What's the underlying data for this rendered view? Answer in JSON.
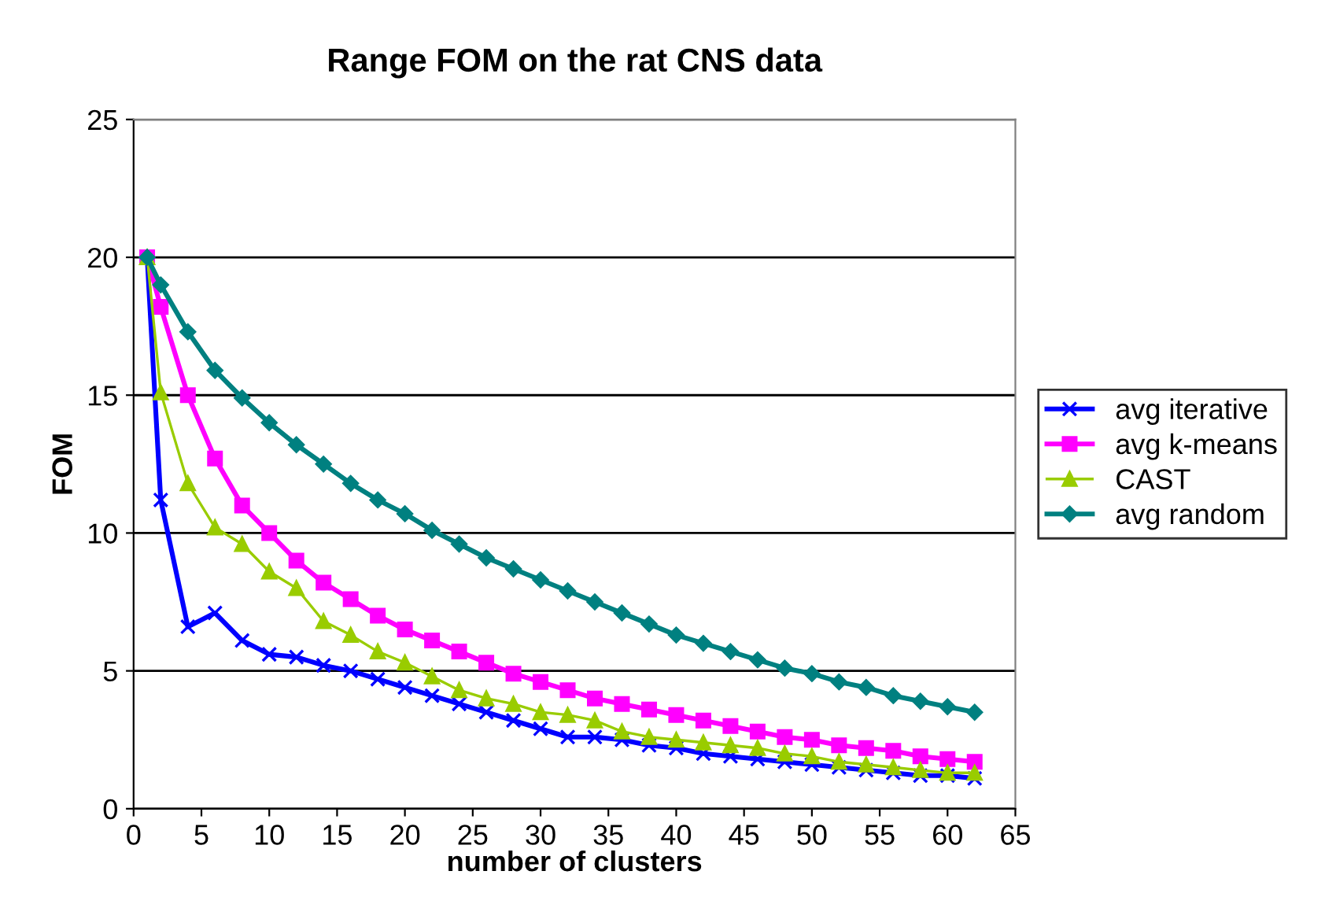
{
  "chart_data": {
    "type": "line",
    "title": "Range FOM on the rat CNS data",
    "xlabel": "number of clusters",
    "ylabel": "FOM",
    "x": [
      1,
      2,
      4,
      6,
      8,
      10,
      12,
      14,
      16,
      18,
      20,
      22,
      24,
      26,
      28,
      30,
      32,
      34,
      36,
      38,
      40,
      42,
      44,
      46,
      48,
      50,
      52,
      54,
      56,
      58,
      60,
      62
    ],
    "series": [
      {
        "name": "avg iterative",
        "color": "#0000ff",
        "marker": "cross",
        "values": [
          20,
          11.2,
          6.6,
          7.1,
          6.1,
          5.6,
          5.5,
          5.2,
          5.0,
          4.7,
          4.4,
          4.1,
          3.8,
          3.5,
          3.2,
          2.9,
          2.6,
          2.6,
          2.5,
          2.3,
          2.2,
          2.0,
          1.9,
          1.8,
          1.7,
          1.6,
          1.5,
          1.4,
          1.3,
          1.2,
          1.2,
          1.1
        ]
      },
      {
        "name": "avg k-means",
        "color": "#ff00ff",
        "marker": "square",
        "values": [
          20,
          18.2,
          15.0,
          12.7,
          11.0,
          10.0,
          9.0,
          8.2,
          7.6,
          7.0,
          6.5,
          6.1,
          5.7,
          5.3,
          4.9,
          4.6,
          4.3,
          4.0,
          3.8,
          3.6,
          3.4,
          3.2,
          3.0,
          2.8,
          2.6,
          2.5,
          2.3,
          2.2,
          2.1,
          1.9,
          1.8,
          1.7
        ]
      },
      {
        "name": "CAST",
        "color": "#99cc00",
        "marker": "triangle",
        "values": [
          20,
          15.1,
          11.8,
          10.2,
          9.6,
          8.6,
          8.0,
          6.8,
          6.3,
          5.7,
          5.3,
          4.8,
          4.3,
          4.0,
          3.8,
          3.5,
          3.4,
          3.2,
          2.8,
          2.6,
          2.5,
          2.4,
          2.3,
          2.2,
          2.0,
          1.9,
          1.7,
          1.6,
          1.5,
          1.4,
          1.3,
          1.3
        ]
      },
      {
        "name": "avg random",
        "color": "#008080",
        "marker": "diamond",
        "values": [
          20,
          19.0,
          17.3,
          15.9,
          14.9,
          14.0,
          13.2,
          12.5,
          11.8,
          11.2,
          10.7,
          10.1,
          9.6,
          9.1,
          8.7,
          8.3,
          7.9,
          7.5,
          7.1,
          6.7,
          6.3,
          6.0,
          5.7,
          5.4,
          5.1,
          4.9,
          4.6,
          4.4,
          4.1,
          3.9,
          3.7,
          3.5
        ]
      }
    ],
    "xlim": [
      0,
      65
    ],
    "xticks": [
      0,
      5,
      10,
      15,
      20,
      25,
      30,
      35,
      40,
      45,
      50,
      55,
      60,
      65
    ],
    "ylim": [
      0,
      25
    ],
    "yticks": [
      0,
      5,
      10,
      15,
      20,
      25
    ],
    "grid": "y",
    "legend": "right",
    "line_style": "solid"
  }
}
